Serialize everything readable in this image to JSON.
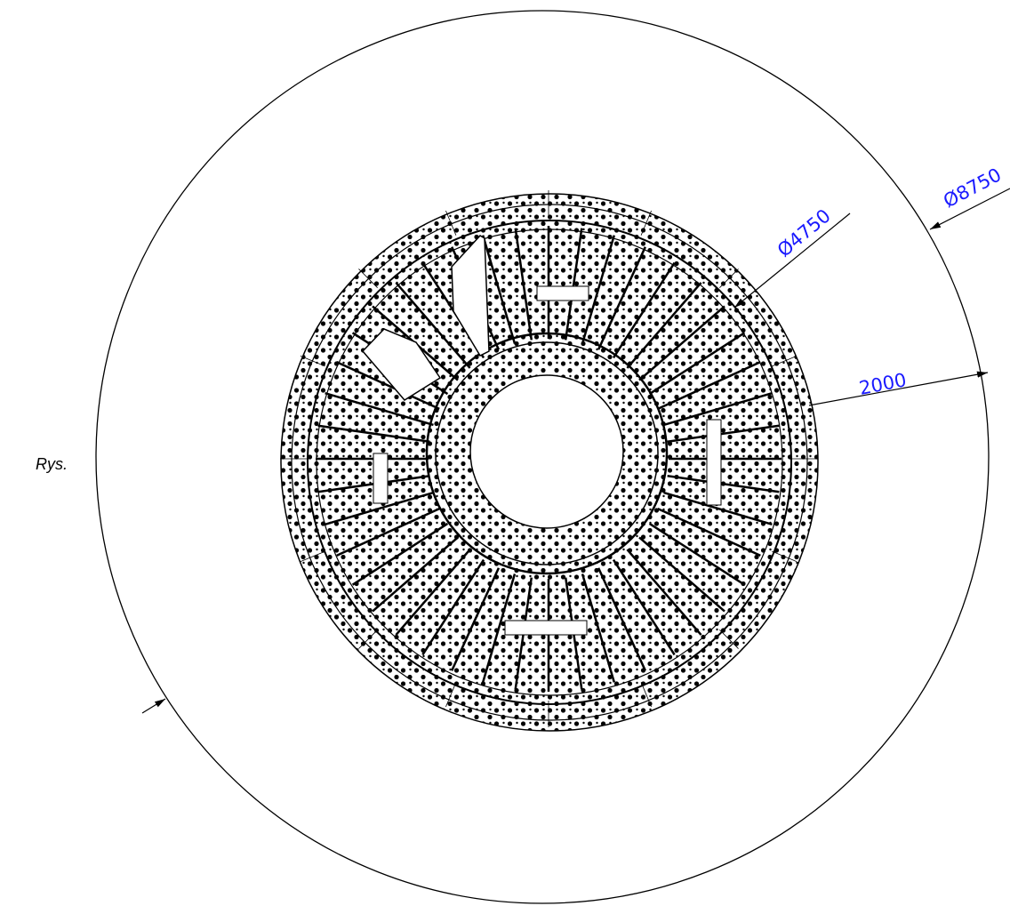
{
  "caption": "Rys.",
  "dimensions": {
    "inner_diameter": "Ø4750",
    "outer_diameter": "Ø8750",
    "clearance": "2000"
  }
}
